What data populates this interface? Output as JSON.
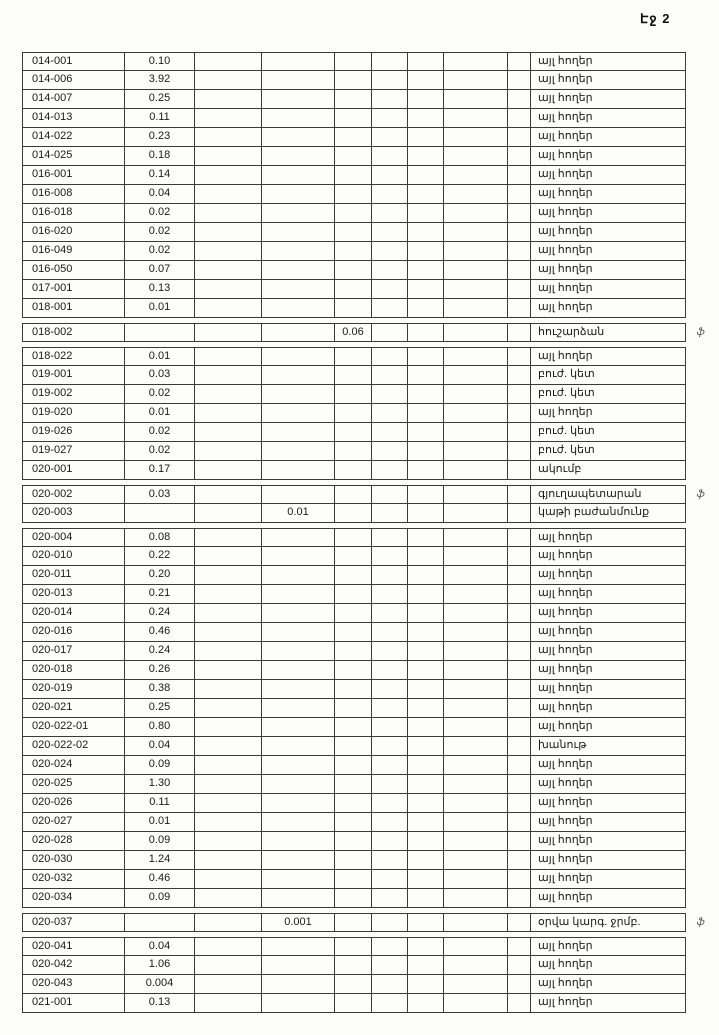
{
  "page": {
    "page_label": "Էջ 2"
  },
  "style": {
    "ink_color": "#1a1a1a",
    "border_color": "#3a3a3a",
    "paper_color": "#fdfdfc"
  },
  "margin_note_glyph": "ֆ",
  "table": {
    "rows": [
      {
        "id": "014-001",
        "v": "0.10",
        "v4": "",
        "v5": "",
        "label": "այլ հողեր",
        "note": "",
        "gap": false
      },
      {
        "id": "014-006",
        "v": "3.92",
        "v4": "",
        "v5": "",
        "label": "այլ հողեր",
        "note": "",
        "gap": false
      },
      {
        "id": "014-007",
        "v": "0.25",
        "v4": "",
        "v5": "",
        "label": "այլ հողեր",
        "note": "",
        "gap": false
      },
      {
        "id": "014-013",
        "v": "0.11",
        "v4": "",
        "v5": "",
        "label": "այլ հողեր",
        "note": "",
        "gap": false
      },
      {
        "id": "014-022",
        "v": "0.23",
        "v4": "",
        "v5": "",
        "label": "այլ հողեր",
        "note": "",
        "gap": false
      },
      {
        "id": "014-025",
        "v": "0.18",
        "v4": "",
        "v5": "",
        "label": "այլ հողեր",
        "note": "",
        "gap": false
      },
      {
        "id": "016-001",
        "v": "0.14",
        "v4": "",
        "v5": "",
        "label": "այլ հողեր",
        "note": "",
        "gap": false
      },
      {
        "id": "016-008",
        "v": "0.04",
        "v4": "",
        "v5": "",
        "label": "այլ հողեր",
        "note": "",
        "gap": false
      },
      {
        "id": "016-018",
        "v": "0.02",
        "v4": "",
        "v5": "",
        "label": "այլ հողեր",
        "note": "",
        "gap": false
      },
      {
        "id": "016-020",
        "v": "0.02",
        "v4": "",
        "v5": "",
        "label": "այլ հողեր",
        "note": "",
        "gap": false
      },
      {
        "id": "016-049",
        "v": "0.02",
        "v4": "",
        "v5": "",
        "label": "այլ հողեր",
        "note": "",
        "gap": false
      },
      {
        "id": "016-050",
        "v": "0.07",
        "v4": "",
        "v5": "",
        "label": "այլ հողեր",
        "note": "",
        "gap": false
      },
      {
        "id": "017-001",
        "v": "0.13",
        "v4": "",
        "v5": "",
        "label": "այլ հողեր",
        "note": "",
        "gap": false
      },
      {
        "id": "018-001",
        "v": "0.01",
        "v4": "",
        "v5": "",
        "label": "այլ հողեր",
        "note": "",
        "gap": false
      },
      {
        "id": "018-002",
        "v": "",
        "v4": "",
        "v5": "0.06",
        "label": "հուշարձան",
        "note": "ֆ",
        "gap": true
      },
      {
        "id": "018-022",
        "v": "0.01",
        "v4": "",
        "v5": "",
        "label": "այլ հողեր",
        "note": "",
        "gap": true
      },
      {
        "id": "019-001",
        "v": "0.03",
        "v4": "",
        "v5": "",
        "label": "բուժ. կետ",
        "note": "",
        "gap": false
      },
      {
        "id": "019-002",
        "v": "0.02",
        "v4": "",
        "v5": "",
        "label": "բուժ. կետ",
        "note": "",
        "gap": false
      },
      {
        "id": "019-020",
        "v": "0.01",
        "v4": "",
        "v5": "",
        "label": "այլ հողեր",
        "note": "",
        "gap": false
      },
      {
        "id": "019-026",
        "v": "0.02",
        "v4": "",
        "v5": "",
        "label": "բուժ. կետ",
        "note": "",
        "gap": false
      },
      {
        "id": "019-027",
        "v": "0.02",
        "v4": "",
        "v5": "",
        "label": "բուժ. կետ",
        "note": "",
        "gap": false
      },
      {
        "id": "020-001",
        "v": "0.17",
        "v4": "",
        "v5": "",
        "label": "ակումբ",
        "note": "",
        "gap": false
      },
      {
        "id": "020-002",
        "v": "0.03",
        "v4": "",
        "v5": "",
        "label": "գյուղապետարան",
        "note": "ֆ",
        "gap": true
      },
      {
        "id": "020-003",
        "v": "",
        "v4": "0.01",
        "v5": "",
        "label": "կաթի բաժանմունք",
        "note": "",
        "gap": false
      },
      {
        "id": "020-004",
        "v": "0.08",
        "v4": "",
        "v5": "",
        "label": "այլ հողեր",
        "note": "",
        "gap": true
      },
      {
        "id": "020-010",
        "v": "0.22",
        "v4": "",
        "v5": "",
        "label": "այլ հողեր",
        "note": "",
        "gap": false
      },
      {
        "id": "020-011",
        "v": "0.20",
        "v4": "",
        "v5": "",
        "label": "այլ հողեր",
        "note": "",
        "gap": false
      },
      {
        "id": "020-013",
        "v": "0.21",
        "v4": "",
        "v5": "",
        "label": "այլ հողեր",
        "note": "",
        "gap": false
      },
      {
        "id": "020-014",
        "v": "0.24",
        "v4": "",
        "v5": "",
        "label": "այլ հողեր",
        "note": "",
        "gap": false
      },
      {
        "id": "020-016",
        "v": "0.46",
        "v4": "",
        "v5": "",
        "label": "այլ հողեր",
        "note": "",
        "gap": false
      },
      {
        "id": "020-017",
        "v": "0.24",
        "v4": "",
        "v5": "",
        "label": "այլ հողեր",
        "note": "",
        "gap": false
      },
      {
        "id": "020-018",
        "v": "0.26",
        "v4": "",
        "v5": "",
        "label": "այլ հողեր",
        "note": "",
        "gap": false
      },
      {
        "id": "020-019",
        "v": "0.38",
        "v4": "",
        "v5": "",
        "label": "այլ հողեր",
        "note": "",
        "gap": false
      },
      {
        "id": "020-021",
        "v": "0.25",
        "v4": "",
        "v5": "",
        "label": "այլ հողեր",
        "note": "",
        "gap": false
      },
      {
        "id": "020-022-01",
        "v": "0.80",
        "v4": "",
        "v5": "",
        "label": "այլ հողեր",
        "note": "",
        "gap": false
      },
      {
        "id": "020-022-02",
        "v": "0.04",
        "v4": "",
        "v5": "",
        "label": "խանութ",
        "note": "",
        "gap": false
      },
      {
        "id": "020-024",
        "v": "0.09",
        "v4": "",
        "v5": "",
        "label": "այլ հողեր",
        "note": "",
        "gap": false
      },
      {
        "id": "020-025",
        "v": "1.30",
        "v4": "",
        "v5": "",
        "label": "այլ հողեր",
        "note": "",
        "gap": false
      },
      {
        "id": "020-026",
        "v": "0.11",
        "v4": "",
        "v5": "",
        "label": "այլ հողեր",
        "note": "",
        "gap": false
      },
      {
        "id": "020-027",
        "v": "0.01",
        "v4": "",
        "v5": "",
        "label": "այլ հողեր",
        "note": "",
        "gap": false
      },
      {
        "id": "020-028",
        "v": "0.09",
        "v4": "",
        "v5": "",
        "label": "այլ հողեր",
        "note": "",
        "gap": false
      },
      {
        "id": "020-030",
        "v": "1.24",
        "v4": "",
        "v5": "",
        "label": "այլ հողեր",
        "note": "",
        "gap": false
      },
      {
        "id": "020-032",
        "v": "0.46",
        "v4": "",
        "v5": "",
        "label": "այլ հողեր",
        "note": "",
        "gap": false
      },
      {
        "id": "020-034",
        "v": "0.09",
        "v4": "",
        "v5": "",
        "label": "այլ հողեր",
        "note": "",
        "gap": false
      },
      {
        "id": "020-037",
        "v": "",
        "v4": "0.001",
        "v5": "",
        "label": "օրվա կարգ. ջրմբ.",
        "note": "ֆ",
        "gap": true
      },
      {
        "id": "020-041",
        "v": "0.04",
        "v4": "",
        "v5": "",
        "label": "այլ հողեր",
        "note": "",
        "gap": true
      },
      {
        "id": "020-042",
        "v": "1.06",
        "v4": "",
        "v5": "",
        "label": "այլ հողեր",
        "note": "",
        "gap": false
      },
      {
        "id": "020-043",
        "v": "0.004",
        "v4": "",
        "v5": "",
        "label": "այլ հողեր",
        "note": "",
        "gap": false
      },
      {
        "id": "021-001",
        "v": "0.13",
        "v4": "",
        "v5": "",
        "label": "այլ հողեր",
        "note": "",
        "gap": false
      }
    ]
  }
}
